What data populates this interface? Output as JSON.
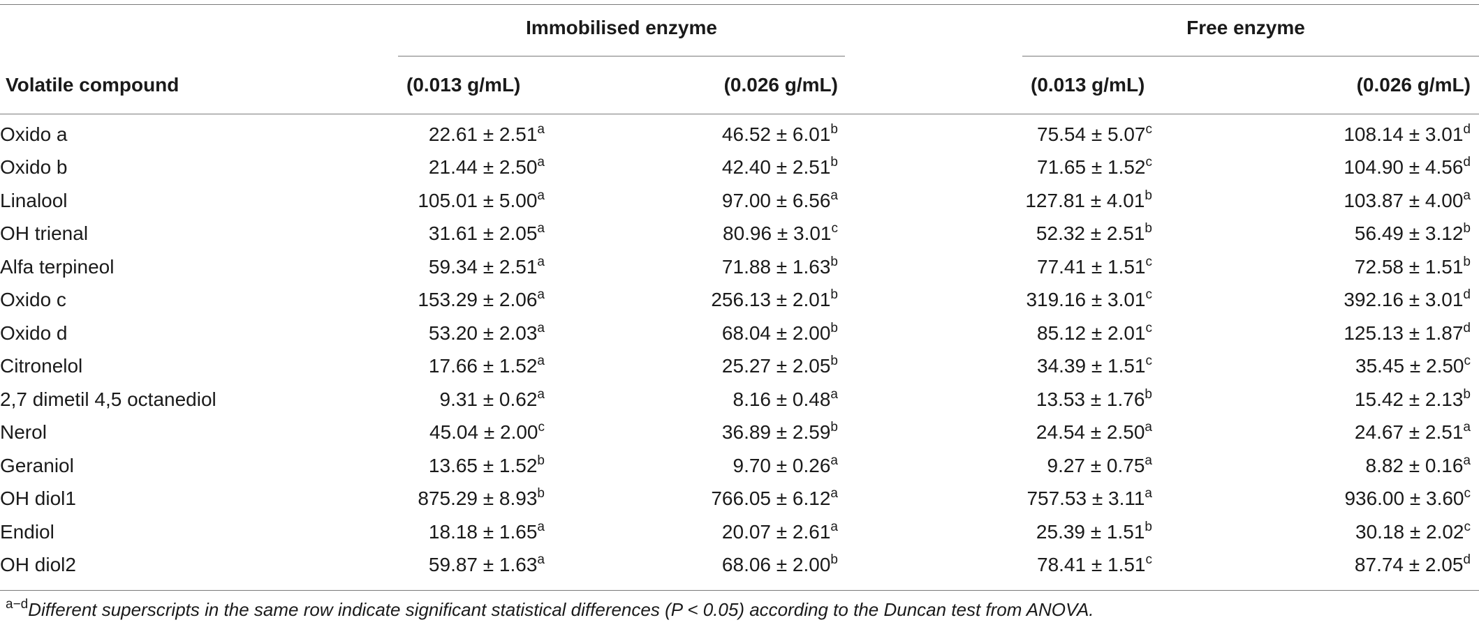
{
  "header": {
    "groups": [
      {
        "label": "Immobilised enzyme"
      },
      {
        "label": "Free enzyme"
      }
    ],
    "columns": [
      "Volatile compound",
      "(0.013 g/mL)",
      "(0.026 g/mL)",
      "(0.013 g/mL)",
      "(0.026 g/mL)"
    ]
  },
  "rows": [
    {
      "name": "Oxido a",
      "cells": [
        {
          "v": "22.61 ± 2.51",
          "s": "a"
        },
        {
          "v": "46.52 ± 6.01",
          "s": "b"
        },
        {
          "v": "75.54 ± 5.07",
          "s": "c"
        },
        {
          "v": "108.14 ± 3.01",
          "s": "d"
        }
      ]
    },
    {
      "name": "Oxido b",
      "cells": [
        {
          "v": "21.44 ± 2.50",
          "s": "a"
        },
        {
          "v": "42.40 ± 2.51",
          "s": "b"
        },
        {
          "v": "71.65 ± 1.52",
          "s": "c"
        },
        {
          "v": "104.90 ± 4.56",
          "s": "d"
        }
      ]
    },
    {
      "name": "Linalool",
      "cells": [
        {
          "v": "105.01 ± 5.00",
          "s": "a"
        },
        {
          "v": "97.00 ± 6.56",
          "s": "a"
        },
        {
          "v": "127.81 ± 4.01",
          "s": "b"
        },
        {
          "v": "103.87 ± 4.00",
          "s": "a"
        }
      ]
    },
    {
      "name": "OH trienal",
      "cells": [
        {
          "v": "31.61 ± 2.05",
          "s": "a"
        },
        {
          "v": "80.96 ± 3.01",
          "s": "c"
        },
        {
          "v": "52.32 ± 2.51",
          "s": "b"
        },
        {
          "v": "56.49 ± 3.12",
          "s": "b"
        }
      ]
    },
    {
      "name": "Alfa terpineol",
      "cells": [
        {
          "v": "59.34 ± 2.51",
          "s": "a"
        },
        {
          "v": "71.88 ± 1.63",
          "s": "b"
        },
        {
          "v": "77.41 ± 1.51",
          "s": "c"
        },
        {
          "v": "72.58 ± 1.51",
          "s": "b"
        }
      ]
    },
    {
      "name": "Oxido c",
      "cells": [
        {
          "v": "153.29 ± 2.06",
          "s": "a"
        },
        {
          "v": "256.13 ± 2.01",
          "s": "b"
        },
        {
          "v": "319.16 ± 3.01",
          "s": "c"
        },
        {
          "v": "392.16 ± 3.01",
          "s": "d"
        }
      ]
    },
    {
      "name": "Oxido d",
      "cells": [
        {
          "v": "53.20 ± 2.03",
          "s": "a"
        },
        {
          "v": "68.04 ± 2.00",
          "s": "b"
        },
        {
          "v": "85.12 ± 2.01",
          "s": "c"
        },
        {
          "v": "125.13 ± 1.87",
          "s": "d"
        }
      ]
    },
    {
      "name": "Citronelol",
      "cells": [
        {
          "v": "17.66 ± 1.52",
          "s": "a"
        },
        {
          "v": "25.27 ± 2.05",
          "s": "b"
        },
        {
          "v": "34.39 ± 1.51",
          "s": "c"
        },
        {
          "v": "35.45 ± 2.50",
          "s": "c"
        }
      ]
    },
    {
      "name": "2,7 dimetil 4,5 octanediol",
      "cells": [
        {
          "v": "9.31 ± 0.62",
          "s": "a"
        },
        {
          "v": "8.16 ± 0.48",
          "s": "a"
        },
        {
          "v": "13.53 ± 1.76",
          "s": "b"
        },
        {
          "v": "15.42 ± 2.13",
          "s": "b"
        }
      ]
    },
    {
      "name": "Nerol",
      "cells": [
        {
          "v": "45.04 ± 2.00",
          "s": "c"
        },
        {
          "v": "36.89 ± 2.59",
          "s": "b"
        },
        {
          "v": "24.54 ± 2.50",
          "s": "a"
        },
        {
          "v": "24.67 ± 2.51",
          "s": "a"
        }
      ]
    },
    {
      "name": "Geraniol",
      "cells": [
        {
          "v": "13.65 ± 1.52",
          "s": "b"
        },
        {
          "v": "9.70 ± 0.26",
          "s": "a"
        },
        {
          "v": "9.27 ± 0.75",
          "s": "a"
        },
        {
          "v": "8.82 ± 0.16",
          "s": "a"
        }
      ]
    },
    {
      "name": "OH diol1",
      "cells": [
        {
          "v": "875.29 ± 8.93",
          "s": "b"
        },
        {
          "v": "766.05 ± 6.12",
          "s": "a"
        },
        {
          "v": "757.53 ± 3.11",
          "s": "a"
        },
        {
          "v": "936.00 ± 3.60",
          "s": "c"
        }
      ]
    },
    {
      "name": "Endiol",
      "cells": [
        {
          "v": "18.18 ± 1.65",
          "s": "a"
        },
        {
          "v": "20.07 ± 2.61",
          "s": "a"
        },
        {
          "v": "25.39 ± 1.51",
          "s": "b"
        },
        {
          "v": "30.18 ± 2.02",
          "s": "c"
        }
      ]
    },
    {
      "name": "OH diol2",
      "cells": [
        {
          "v": "59.87 ± 1.63",
          "s": "a"
        },
        {
          "v": "68.06 ± 2.00",
          "s": "b"
        },
        {
          "v": "78.41 ± 1.51",
          "s": "c"
        },
        {
          "v": "87.74 ± 2.05",
          "s": "d"
        }
      ]
    }
  ],
  "footnote": {
    "marker": "a−d",
    "text": "Different superscripts in the same row indicate significant statistical differences (P < 0.05) according to the Duncan test from ANOVA."
  }
}
